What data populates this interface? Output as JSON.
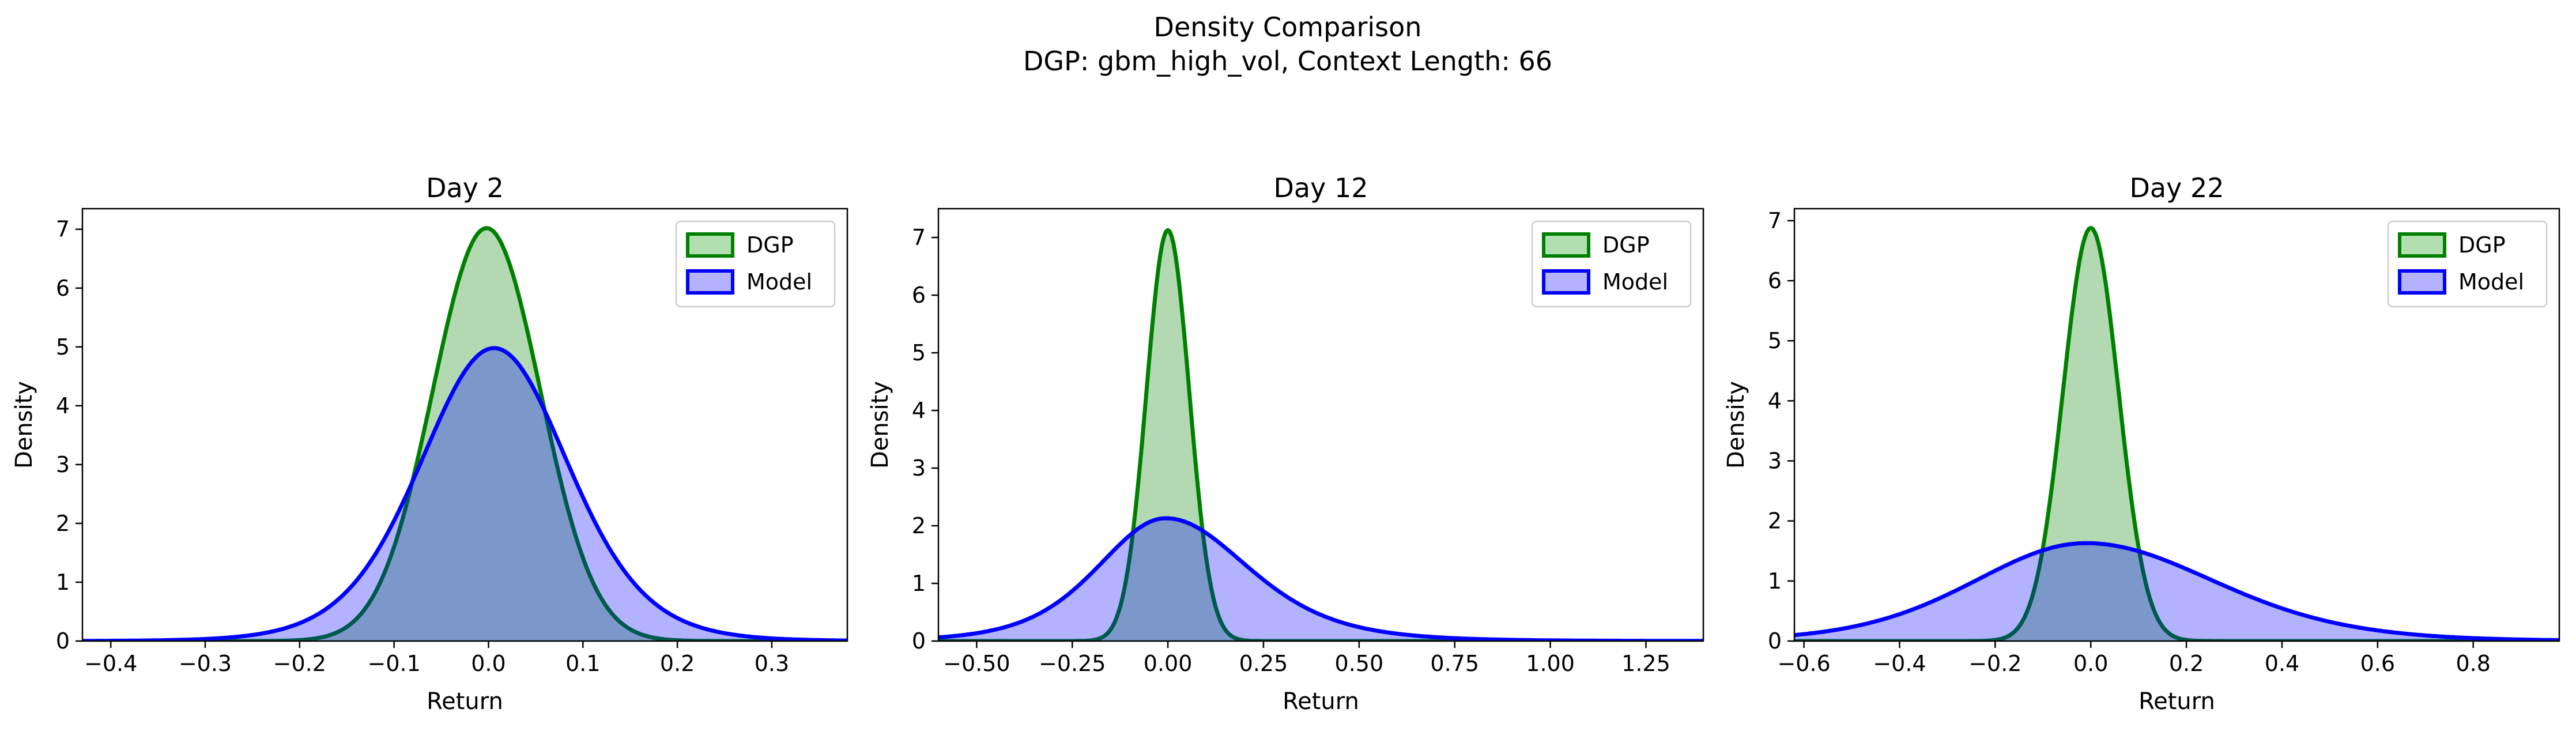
{
  "figure": {
    "title_line1": "Density Comparison",
    "title_line2": "DGP: gbm_high_vol, Context Length: 66"
  },
  "colors": {
    "dgp_line": "#008000",
    "dgp_fill": "#b2dfb2",
    "model_line": "#0000ff",
    "model_fill": "#b2b2ff"
  },
  "chart_data": [
    {
      "type": "area",
      "title": "Day 2",
      "xlabel": "Return",
      "ylabel": "Density",
      "xlim": [
        -0.43,
        0.38
      ],
      "ylim": [
        0,
        7.35
      ],
      "xticks": [
        -0.4,
        -0.3,
        -0.2,
        -0.1,
        0.0,
        0.1,
        0.2,
        0.3
      ],
      "xtick_labels": [
        "−0.4",
        "−0.3",
        "−0.2",
        "−0.1",
        "0.0",
        "0.1",
        "0.2",
        "0.3"
      ],
      "yticks": [
        0,
        1,
        2,
        3,
        4,
        5,
        6,
        7
      ],
      "ytick_labels": [
        "0",
        "1",
        "2",
        "3",
        "4",
        "5",
        "6",
        "7"
      ],
      "legend": "top-right",
      "grid": false,
      "series": [
        {
          "name": "DGP",
          "color": "#008000",
          "fill": "#b2dfb2",
          "mu": -0.002,
          "sigma": 0.057,
          "peak": 7.02
        },
        {
          "name": "Model",
          "color": "#0000ff",
          "fill": "#b2b2ff",
          "mu": 0.006,
          "sigma": 0.08,
          "peak": 4.98,
          "tail_df": 10
        }
      ]
    },
    {
      "type": "area",
      "title": "Day 12",
      "xlabel": "Return",
      "ylabel": "Density",
      "xlim": [
        -0.6,
        1.4
      ],
      "ylim": [
        0,
        7.5
      ],
      "xticks": [
        -0.5,
        -0.25,
        0.0,
        0.25,
        0.5,
        0.75,
        1.0,
        1.25
      ],
      "xtick_labels": [
        "−0.50",
        "−0.25",
        "0.00",
        "0.25",
        "0.50",
        "0.75",
        "1.00",
        "1.25"
      ],
      "yticks": [
        0,
        1,
        2,
        3,
        4,
        5,
        6,
        7
      ],
      "ytick_labels": [
        "0",
        "1",
        "2",
        "3",
        "4",
        "5",
        "6",
        "7"
      ],
      "legend": "top-right",
      "grid": false,
      "series": [
        {
          "name": "DGP",
          "color": "#008000",
          "fill": "#b2dfb2",
          "mu": 0.0,
          "sigma": 0.056,
          "peak": 7.13
        },
        {
          "name": "Model",
          "color": "#0000ff",
          "fill": "#b2b2ff",
          "mu": -0.005,
          "sigma": 0.185,
          "peak": 2.13,
          "tail_df": 6,
          "skew": 1.2
        }
      ]
    },
    {
      "type": "area",
      "title": "Day 22",
      "xlabel": "Return",
      "ylabel": "Density",
      "xlim": [
        -0.62,
        0.98
      ],
      "ylim": [
        0,
        7.2
      ],
      "xticks": [
        -0.6,
        -0.4,
        -0.2,
        0.0,
        0.2,
        0.4,
        0.6,
        0.8
      ],
      "xtick_labels": [
        "−0.6",
        "−0.4",
        "−0.2",
        "0.0",
        "0.2",
        "0.4",
        "0.6",
        "0.8"
      ],
      "yticks": [
        0,
        1,
        2,
        3,
        4,
        5,
        6,
        7
      ],
      "ytick_labels": [
        "0",
        "1",
        "2",
        "3",
        "4",
        "5",
        "6",
        "7"
      ],
      "legend": "top-right",
      "grid": false,
      "series": [
        {
          "name": "DGP",
          "color": "#008000",
          "fill": "#b2dfb2",
          "mu": 0.0,
          "sigma": 0.058,
          "peak": 6.88
        },
        {
          "name": "Model",
          "color": "#0000ff",
          "fill": "#b2b2ff",
          "mu": -0.01,
          "sigma": 0.24,
          "peak": 1.63,
          "tail_df": 12,
          "skew": 1.15
        }
      ]
    }
  ]
}
